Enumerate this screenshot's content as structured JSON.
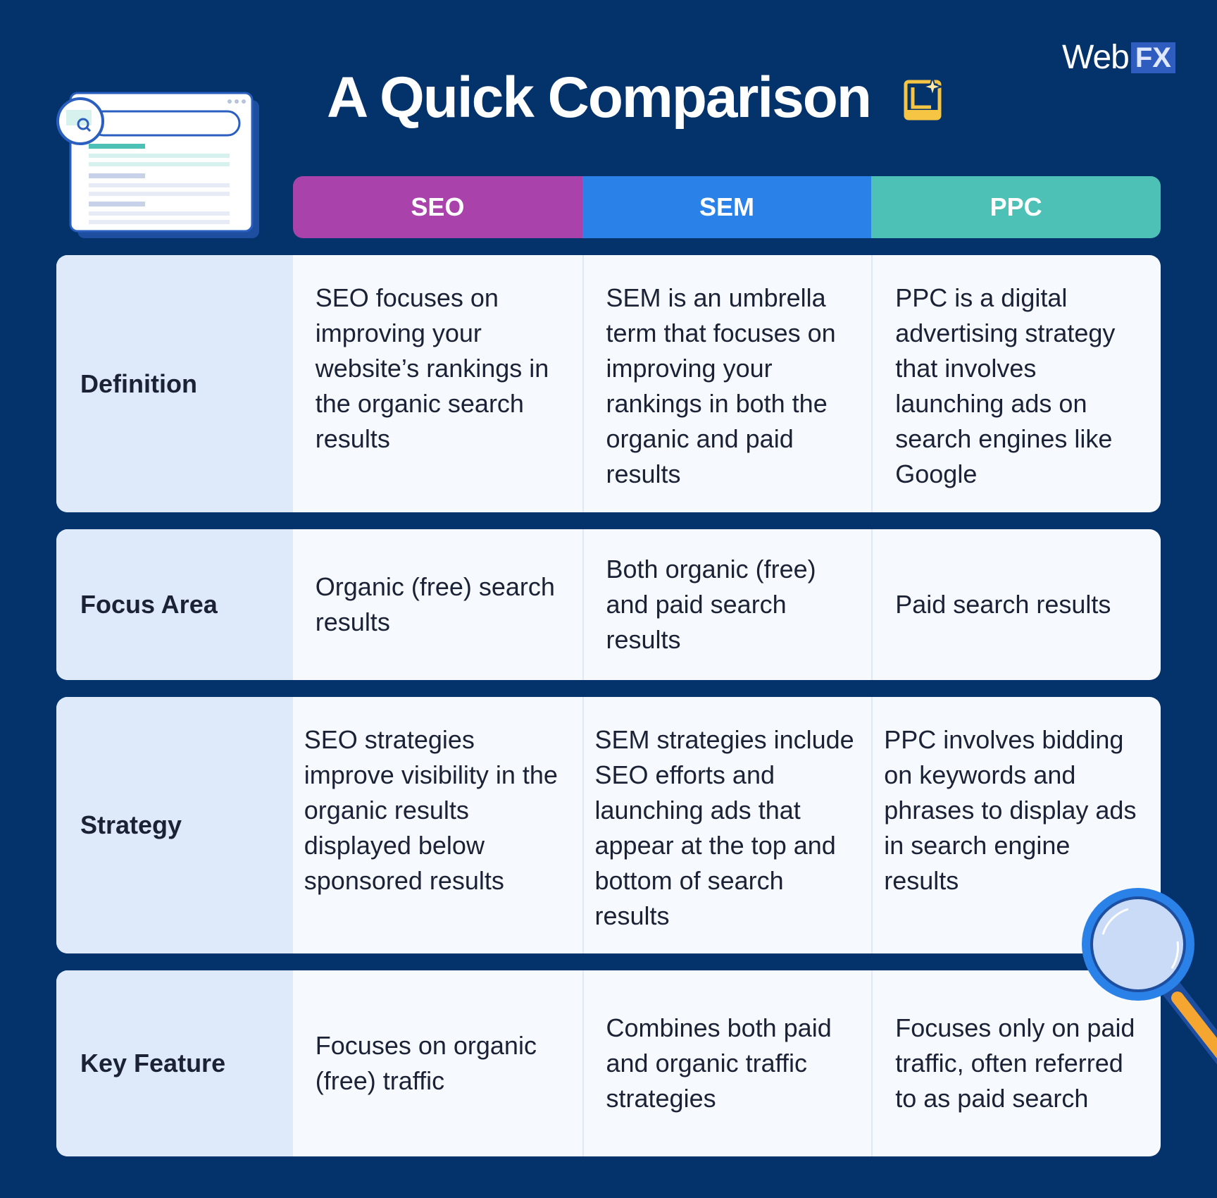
{
  "brand": {
    "logo_word": "Web",
    "logo_mark": "FX"
  },
  "title": "A Quick Comparison",
  "title_icon": "sparkle-chart-icon",
  "illustration_icons": [
    "browser-window-icon",
    "search-icon",
    "magnifying-glass-icon"
  ],
  "columns": [
    "SEO",
    "SEM",
    "PPC"
  ],
  "column_colors": {
    "SEO": "#a942aa",
    "SEM": "#2a82e8",
    "PPC": "#4dc1b6"
  },
  "rows": [
    {
      "label": "Definition",
      "cells": [
        "SEO focuses on improving your website’s rankings in the organic search results",
        "SEM is an umbrella term that focuses on improving your rankings in both the organic and paid results",
        "PPC is a digital advertising strategy that involves launching ads on search engines like Google"
      ]
    },
    {
      "label": "Focus Area",
      "cells": [
        "Organic (free) search results",
        "Both organic (free) and paid search results",
        "Paid search results"
      ]
    },
    {
      "label": "Strategy",
      "cells": [
        "SEO strategies improve visibility in the organic results displayed below sponsored results",
        "SEM strategies include SEO efforts and launching ads that appear at the top and bottom of search results",
        "PPC involves bidding on keywords and phrases to display ads in search engine results"
      ]
    },
    {
      "label": "Key Feature",
      "cells": [
        "Focuses on organic (free) traffic",
        "Combines both paid and organic traffic strategies",
        "Focuses only on paid traffic, often referred to as paid search"
      ]
    }
  ],
  "colors": {
    "background": "#04326b",
    "label_bg": "#deeafa",
    "cell_bg": "#f6f9fe",
    "text": "#1c2236"
  }
}
